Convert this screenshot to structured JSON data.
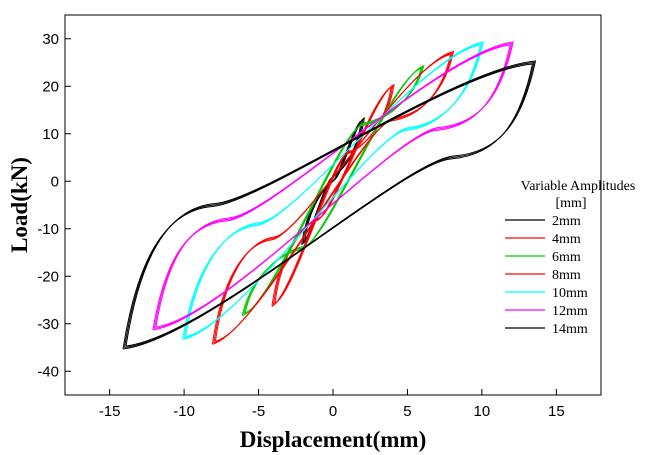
{
  "chart_data": {
    "type": "line",
    "xlabel": "Displacement(mm)",
    "ylabel": "Load(kN)",
    "xlim": [
      -18,
      18
    ],
    "ylim": [
      -45,
      35
    ],
    "xticks": [
      -15,
      -10,
      -5,
      0,
      5,
      10,
      15
    ],
    "yticks": [
      -40,
      -30,
      -20,
      -10,
      0,
      10,
      20,
      30
    ],
    "grid": false,
    "legend": {
      "title_line1": "Variable Amplitudes",
      "title_line2": "[mm]",
      "placement": "right"
    },
    "series": [
      {
        "name": "2mm",
        "color": "#000000",
        "x": [
          -2,
          0,
          2,
          0,
          -2
        ],
        "y": [
          -13,
          0,
          13,
          1,
          -13
        ]
      },
      {
        "name": "4mm",
        "color": "#ff0000",
        "x": [
          -4,
          -1,
          4,
          1,
          -4
        ],
        "y": [
          -26,
          -8,
          20,
          6,
          -26
        ]
      },
      {
        "name": "6mm",
        "color": "#00cc00",
        "x": [
          -6,
          -2,
          6,
          2,
          -6
        ],
        "y": [
          -28,
          -14,
          24,
          12,
          -28
        ]
      },
      {
        "name": "8mm",
        "color": "#ff0000",
        "x": [
          -8,
          -4,
          8,
          4,
          -8
        ],
        "y": [
          -34,
          -12,
          27,
          13,
          -34
        ]
      },
      {
        "name": "10mm",
        "color": "#00ffff",
        "x": [
          -10,
          -5,
          10,
          5,
          -10
        ],
        "y": [
          -33,
          -9,
          29,
          11,
          -33
        ]
      },
      {
        "name": "12mm",
        "color": "#ff00ff",
        "x": [
          -12,
          -7,
          12,
          7,
          -12
        ],
        "y": [
          -31,
          -8,
          29,
          11,
          -31
        ]
      },
      {
        "name": "14mm",
        "color": "#000000",
        "x": [
          -14,
          -8,
          13.5,
          8,
          -14
        ],
        "y": [
          -35,
          -5,
          25,
          5,
          -35
        ]
      }
    ]
  }
}
